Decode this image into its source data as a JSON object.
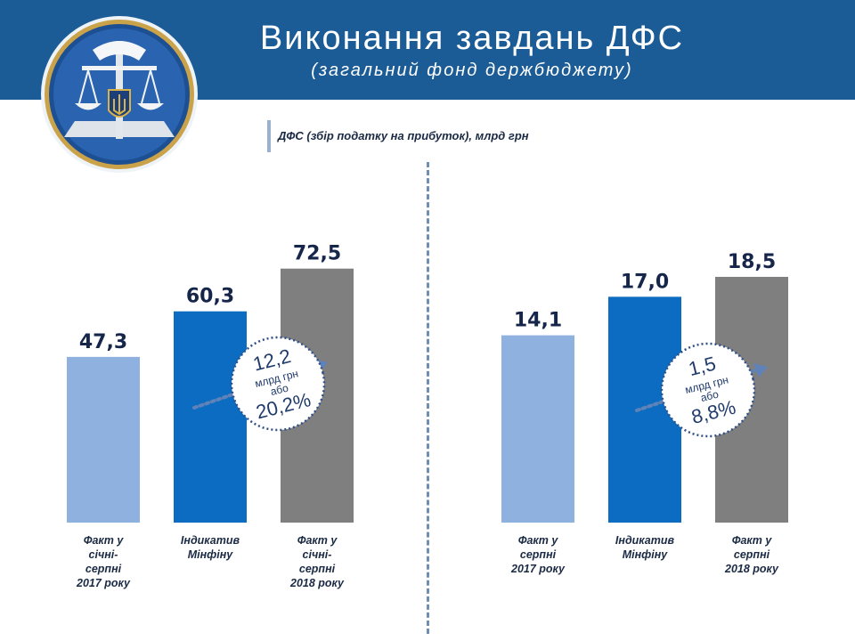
{
  "header": {
    "title": "Виконання завдань ДФС",
    "subtitle": "(загальний фонд держбюджету)"
  },
  "section": {
    "label": "ДФС (збір податку на прибуток), млрд грн"
  },
  "icons": {
    "emblem": "dfs-emblem-icon"
  },
  "colors": {
    "header": "#1c5c96",
    "light_blue": "#8fb1e0",
    "blue": "#0c6cc2",
    "gray": "#7f7f7f",
    "value_text": "#16264a"
  },
  "chart_data": [
    {
      "type": "bar",
      "categories": [
        "Факт у\nсічні-\nсерпні\n2017 року",
        "Індикатив\nМінфіну",
        "Факт у\nсічні-\nсерпні\n2018 року"
      ],
      "values": [
        47.3,
        60.3,
        72.5
      ],
      "value_labels": [
        "47,3",
        "60,3",
        "72,5"
      ],
      "colors": [
        "#8fb1e0",
        "#0c6cc2",
        "#7f7f7f"
      ],
      "ylim": [
        0,
        80
      ],
      "annotation": {
        "value": "12,2",
        "unit": "млрд грн",
        "connector": "або",
        "percent": "20,2%"
      }
    },
    {
      "type": "bar",
      "categories": [
        "Факт у\nсерпні\n2017 року",
        "Індикатив\nМінфіну",
        "Факт у\nсерпні\n2018 року"
      ],
      "values": [
        14.1,
        17.0,
        18.5
      ],
      "value_labels": [
        "14,1",
        "17,0",
        "18,5"
      ],
      "colors": [
        "#8fb1e0",
        "#0c6cc2",
        "#7f7f7f"
      ],
      "ylim": [
        0,
        20.5
      ],
      "annotation": {
        "value": "1,5",
        "unit": "млрд грн",
        "connector": "або",
        "percent": "8,8%"
      }
    }
  ]
}
